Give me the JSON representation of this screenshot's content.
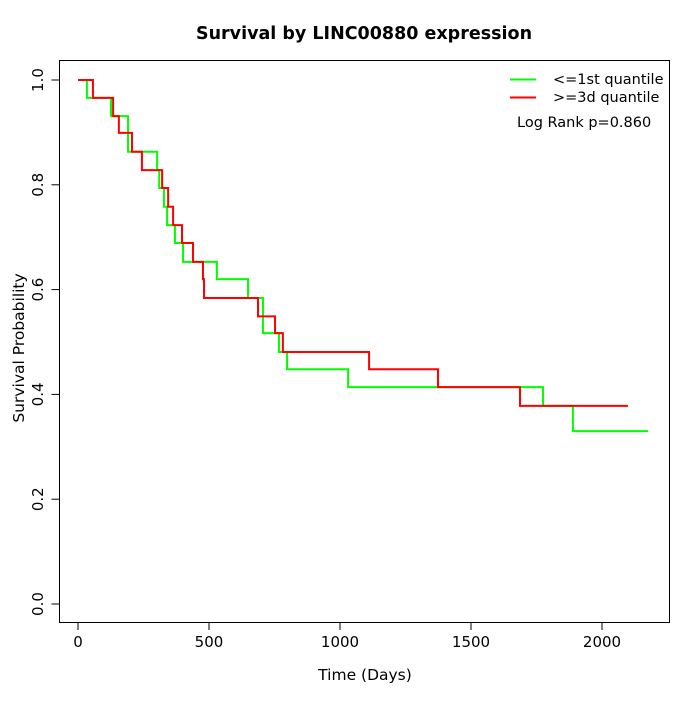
{
  "title": "Survival by LINC00880 expression",
  "chart_data": {
    "type": "line",
    "subtype": "kaplan-meier-step",
    "title": "Survival by LINC00880 expression",
    "xlabel": "Time (Days)",
    "ylabel": "Survival Probability",
    "xlim": [
      0,
      2260
    ],
    "ylim": [
      0,
      1
    ],
    "x_ticks": [
      0,
      500,
      1000,
      1500,
      2000
    ],
    "y_ticks": [
      "0.0",
      "0.2",
      "0.4",
      "0.6",
      "0.8",
      "1.0"
    ],
    "grid": false,
    "legend_position": "top-right",
    "annotation": "Log Rank p=0.860",
    "series": [
      {
        "name": "<=1st quantile",
        "color": "#00ff00",
        "points": [
          [
            0,
            1.0
          ],
          [
            34,
            0.966
          ],
          [
            126,
            0.931
          ],
          [
            191,
            0.863
          ],
          [
            302,
            0.828
          ],
          [
            310,
            0.794
          ],
          [
            328,
            0.758
          ],
          [
            340,
            0.723
          ],
          [
            370,
            0.689
          ],
          [
            401,
            0.653
          ],
          [
            530,
            0.62
          ],
          [
            649,
            0.584
          ],
          [
            706,
            0.517
          ],
          [
            767,
            0.481
          ],
          [
            798,
            0.448
          ],
          [
            1031,
            0.414
          ],
          [
            1775,
            0.378
          ],
          [
            1889,
            0.33
          ]
        ],
        "end_time": 2176
      },
      {
        "name": ">=3d quantile",
        "color": "#ff0000",
        "points": [
          [
            0,
            1.0
          ],
          [
            57,
            0.966
          ],
          [
            134,
            0.931
          ],
          [
            156,
            0.899
          ],
          [
            206,
            0.863
          ],
          [
            244,
            0.828
          ],
          [
            321,
            0.794
          ],
          [
            344,
            0.758
          ],
          [
            363,
            0.723
          ],
          [
            397,
            0.689
          ],
          [
            439,
            0.653
          ],
          [
            477,
            0.62
          ],
          [
            481,
            0.584
          ],
          [
            687,
            0.549
          ],
          [
            752,
            0.517
          ],
          [
            782,
            0.481
          ],
          [
            1111,
            0.448
          ],
          [
            1374,
            0.414
          ],
          [
            1687,
            0.378
          ]
        ],
        "end_time": 2099
      }
    ]
  }
}
